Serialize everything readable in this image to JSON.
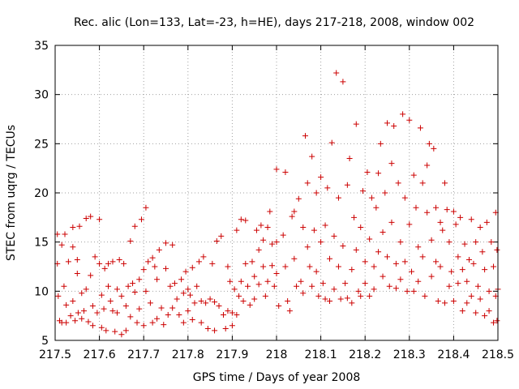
{
  "chart_data": {
    "type": "scatter",
    "title": "Rec. alic (Lon=133, Lat=-23, h=HE), days 217-218, 2008, window 002",
    "xlabel": "GPS time / Days of year 2008",
    "ylabel": "STEC from uqrg / TECUs",
    "xlim": [
      217.5,
      218.5
    ],
    "ylim": [
      5,
      35
    ],
    "xticks": [
      {
        "value": 217.5,
        "label": "217.5"
      },
      {
        "value": 217.6,
        "label": "217.6"
      },
      {
        "value": 217.7,
        "label": "217.7"
      },
      {
        "value": 217.8,
        "label": "217.8"
      },
      {
        "value": 217.9,
        "label": "217.9"
      },
      {
        "value": 218.0,
        "label": "218"
      },
      {
        "value": 218.1,
        "label": "218.1"
      },
      {
        "value": 218.2,
        "label": "218.2"
      },
      {
        "value": 218.3,
        "label": "218.3"
      },
      {
        "value": 218.4,
        "label": "218.4"
      },
      {
        "value": 218.5,
        "label": "218.5"
      }
    ],
    "yticks": [
      {
        "value": 5,
        "label": "5"
      },
      {
        "value": 10,
        "label": "10"
      },
      {
        "value": 15,
        "label": "15"
      },
      {
        "value": 20,
        "label": "20"
      },
      {
        "value": 25,
        "label": "25"
      },
      {
        "value": 30,
        "label": "30"
      },
      {
        "value": 35,
        "label": "35"
      }
    ],
    "grid": true,
    "marker": "+",
    "color": "#cc0000",
    "series": [
      {
        "name": "STEC",
        "points": [
          [
            217.505,
            15.8
          ],
          [
            217.505,
            12.8
          ],
          [
            217.507,
            9.5
          ],
          [
            217.51,
            7.0
          ],
          [
            217.515,
            14.7
          ],
          [
            217.515,
            6.8
          ],
          [
            217.52,
            10.5
          ],
          [
            217.522,
            15.8
          ],
          [
            217.525,
            8.6
          ],
          [
            217.525,
            6.8
          ],
          [
            217.53,
            13.0
          ],
          [
            217.535,
            7.5
          ],
          [
            217.54,
            16.5
          ],
          [
            217.54,
            9.0
          ],
          [
            217.54,
            14.5
          ],
          [
            217.545,
            7.0
          ],
          [
            217.55,
            13.2
          ],
          [
            217.55,
            11.8
          ],
          [
            217.552,
            7.8
          ],
          [
            217.555,
            16.6
          ],
          [
            217.56,
            9.8
          ],
          [
            217.56,
            7.2
          ],
          [
            217.565,
            8.0
          ],
          [
            217.57,
            17.4
          ],
          [
            217.57,
            10.2
          ],
          [
            217.575,
            6.9
          ],
          [
            217.58,
            17.6
          ],
          [
            217.58,
            11.6
          ],
          [
            217.585,
            8.5
          ],
          [
            217.585,
            6.5
          ],
          [
            217.59,
            13.5
          ],
          [
            217.595,
            7.8
          ],
          [
            217.6,
            17.3
          ],
          [
            217.6,
            12.8
          ],
          [
            217.605,
            9.6
          ],
          [
            217.605,
            6.3
          ],
          [
            217.61,
            8.2
          ],
          [
            217.612,
            12.3
          ],
          [
            217.615,
            6.0
          ],
          [
            217.62,
            12.8
          ],
          [
            217.62,
            10.5
          ],
          [
            217.625,
            9.0
          ],
          [
            217.63,
            13.0
          ],
          [
            217.63,
            8.0
          ],
          [
            217.635,
            5.9
          ],
          [
            217.64,
            10.2
          ],
          [
            217.64,
            7.8
          ],
          [
            217.645,
            13.2
          ],
          [
            217.65,
            9.5
          ],
          [
            217.65,
            5.6
          ],
          [
            217.655,
            12.8
          ],
          [
            217.66,
            8.5
          ],
          [
            217.66,
            6.0
          ],
          [
            217.665,
            10.5
          ],
          [
            217.67,
            15.1
          ],
          [
            217.67,
            7.4
          ],
          [
            217.675,
            10.8
          ],
          [
            217.68,
            16.6
          ],
          [
            217.68,
            9.9
          ],
          [
            217.685,
            6.8
          ],
          [
            217.69,
            11.2
          ],
          [
            217.69,
            8.2
          ],
          [
            217.695,
            17.3
          ],
          [
            217.7,
            12.2
          ],
          [
            217.7,
            6.5
          ],
          [
            217.705,
            18.5
          ],
          [
            217.705,
            10.0
          ],
          [
            217.71,
            13.0
          ],
          [
            217.715,
            8.8
          ],
          [
            217.72,
            13.4
          ],
          [
            217.72,
            6.8
          ],
          [
            217.725,
            12.5
          ],
          [
            217.73,
            7.2
          ],
          [
            217.73,
            11.2
          ],
          [
            217.735,
            14.2
          ],
          [
            217.74,
            8.3
          ],
          [
            217.745,
            6.6
          ],
          [
            217.75,
            14.9
          ],
          [
            217.75,
            12.3
          ],
          [
            217.755,
            7.6
          ],
          [
            217.76,
            10.5
          ],
          [
            217.765,
            14.7
          ],
          [
            217.765,
            8.3
          ],
          [
            217.77,
            10.8
          ],
          [
            217.775,
            9.2
          ],
          [
            217.78,
            7.6
          ],
          [
            217.785,
            11.2
          ],
          [
            217.79,
            9.8
          ],
          [
            217.79,
            6.8
          ],
          [
            217.795,
            12.0
          ],
          [
            217.8,
            10.2
          ],
          [
            217.8,
            8.0
          ],
          [
            217.805,
            9.6
          ],
          [
            217.81,
            12.4
          ],
          [
            217.81,
            7.1
          ],
          [
            217.815,
            8.8
          ],
          [
            217.82,
            10.5
          ],
          [
            217.825,
            13.0
          ],
          [
            217.83,
            9.0
          ],
          [
            217.83,
            6.8
          ],
          [
            217.835,
            13.5
          ],
          [
            217.84,
            8.8
          ],
          [
            217.845,
            6.2
          ],
          [
            217.85,
            9.2
          ],
          [
            217.855,
            12.8
          ],
          [
            217.86,
            8.9
          ],
          [
            217.86,
            6.0
          ],
          [
            217.865,
            15.1
          ],
          [
            217.87,
            8.5
          ],
          [
            217.875,
            15.6
          ],
          [
            217.88,
            7.6
          ],
          [
            217.885,
            6.2
          ],
          [
            217.89,
            12.5
          ],
          [
            217.89,
            8.0
          ],
          [
            217.895,
            11.0
          ],
          [
            217.9,
            7.8
          ],
          [
            217.9,
            6.5
          ],
          [
            217.905,
            10.2
          ],
          [
            217.91,
            16.2
          ],
          [
            217.91,
            7.6
          ],
          [
            217.915,
            9.5
          ],
          [
            217.92,
            17.3
          ],
          [
            217.92,
            11.0
          ],
          [
            217.925,
            9.0
          ],
          [
            217.93,
            17.2
          ],
          [
            217.93,
            12.8
          ],
          [
            217.935,
            10.5
          ],
          [
            217.94,
            8.6
          ],
          [
            217.945,
            13.0
          ],
          [
            217.95,
            11.5
          ],
          [
            217.95,
            9.2
          ],
          [
            217.955,
            16.2
          ],
          [
            217.96,
            14.2
          ],
          [
            217.96,
            10.7
          ],
          [
            217.965,
            16.7
          ],
          [
            217.97,
            15.2
          ],
          [
            217.97,
            12.5
          ],
          [
            217.975,
            9.5
          ],
          [
            217.98,
            16.5
          ],
          [
            217.98,
            11.0
          ],
          [
            217.985,
            18.1
          ],
          [
            217.99,
            14.8
          ],
          [
            217.99,
            12.6
          ],
          [
            217.995,
            10.5
          ],
          [
            218.0,
            22.4
          ],
          [
            218.0,
            15.0
          ],
          [
            218.0,
            11.8
          ],
          [
            218.005,
            8.5
          ],
          [
            218.015,
            15.7
          ],
          [
            218.02,
            22.1
          ],
          [
            218.02,
            12.5
          ],
          [
            218.025,
            9.0
          ],
          [
            218.03,
            8.0
          ],
          [
            218.035,
            17.6
          ],
          [
            218.04,
            18.1
          ],
          [
            218.04,
            13.3
          ],
          [
            218.045,
            10.5
          ],
          [
            218.05,
            19.4
          ],
          [
            218.055,
            11.0
          ],
          [
            218.06,
            16.5
          ],
          [
            218.06,
            9.8
          ],
          [
            218.065,
            25.8
          ],
          [
            218.07,
            21.0
          ],
          [
            218.07,
            14.5
          ],
          [
            218.075,
            12.5
          ],
          [
            218.08,
            23.7
          ],
          [
            218.08,
            10.5
          ],
          [
            218.085,
            16.2
          ],
          [
            218.09,
            20.0
          ],
          [
            218.09,
            12.0
          ],
          [
            218.095,
            9.5
          ],
          [
            218.1,
            21.6
          ],
          [
            218.1,
            15.0
          ],
          [
            218.105,
            10.8
          ],
          [
            218.11,
            16.7
          ],
          [
            218.11,
            9.2
          ],
          [
            218.115,
            20.5
          ],
          [
            218.12,
            13.3
          ],
          [
            218.12,
            9.0
          ],
          [
            218.125,
            25.1
          ],
          [
            218.13,
            15.6
          ],
          [
            218.13,
            10.2
          ],
          [
            218.135,
            32.2
          ],
          [
            218.14,
            19.5
          ],
          [
            218.14,
            12.5
          ],
          [
            218.145,
            9.2
          ],
          [
            218.15,
            31.3
          ],
          [
            218.15,
            14.6
          ],
          [
            218.155,
            10.8
          ],
          [
            218.16,
            20.8
          ],
          [
            218.16,
            9.3
          ],
          [
            218.165,
            23.5
          ],
          [
            218.17,
            12.2
          ],
          [
            218.17,
            8.8
          ],
          [
            218.175,
            17.5
          ],
          [
            218.18,
            27.0
          ],
          [
            218.18,
            14.2
          ],
          [
            218.185,
            10.0
          ],
          [
            218.19,
            16.5
          ],
          [
            218.19,
            9.5
          ],
          [
            218.195,
            20.2
          ],
          [
            218.2,
            13.0
          ],
          [
            218.2,
            10.8
          ],
          [
            218.205,
            22.1
          ],
          [
            218.21,
            15.3
          ],
          [
            218.21,
            9.5
          ],
          [
            218.215,
            19.5
          ],
          [
            218.22,
            12.5
          ],
          [
            218.22,
            10.2
          ],
          [
            218.225,
            18.5
          ],
          [
            218.23,
            22.0
          ],
          [
            218.23,
            14.0
          ],
          [
            218.235,
            25.0
          ],
          [
            218.24,
            16.0
          ],
          [
            218.24,
            11.5
          ],
          [
            218.245,
            20.0
          ],
          [
            218.25,
            27.1
          ],
          [
            218.25,
            13.5
          ],
          [
            218.255,
            10.5
          ],
          [
            218.26,
            23.0
          ],
          [
            218.26,
            17.0
          ],
          [
            218.265,
            26.8
          ],
          [
            218.27,
            12.8
          ],
          [
            218.27,
            10.3
          ],
          [
            218.275,
            21.0
          ],
          [
            218.28,
            15.0
          ],
          [
            218.28,
            11.2
          ],
          [
            218.285,
            28.0
          ],
          [
            218.29,
            19.5
          ],
          [
            218.29,
            13.0
          ],
          [
            218.295,
            10.0
          ],
          [
            218.3,
            27.4
          ],
          [
            218.3,
            16.8
          ],
          [
            218.305,
            12.0
          ],
          [
            218.31,
            21.8
          ],
          [
            218.31,
            10.0
          ],
          [
            218.315,
            18.5
          ],
          [
            218.32,
            14.5
          ],
          [
            218.32,
            11.0
          ],
          [
            218.325,
            26.6
          ],
          [
            218.33,
            21.0
          ],
          [
            218.33,
            13.5
          ],
          [
            218.335,
            9.5
          ],
          [
            218.34,
            18.0
          ],
          [
            218.34,
            22.8
          ],
          [
            218.345,
            25.0
          ],
          [
            218.35,
            15.2
          ],
          [
            218.35,
            11.5
          ],
          [
            218.355,
            24.5
          ],
          [
            218.36,
            18.5
          ],
          [
            218.36,
            13.0
          ],
          [
            218.365,
            9.0
          ],
          [
            218.37,
            17.0
          ],
          [
            218.37,
            12.5
          ],
          [
            218.375,
            16.2
          ],
          [
            218.38,
            21.0
          ],
          [
            218.38,
            8.8
          ],
          [
            218.385,
            18.3
          ],
          [
            218.39,
            15.0
          ],
          [
            218.39,
            10.5
          ],
          [
            218.395,
            12.0
          ],
          [
            218.4,
            18.1
          ],
          [
            218.4,
            9.0
          ],
          [
            218.405,
            16.8
          ],
          [
            218.41,
            13.5
          ],
          [
            218.41,
            10.8
          ],
          [
            218.415,
            17.5
          ],
          [
            218.42,
            12.2
          ],
          [
            218.42,
            8.0
          ],
          [
            218.425,
            14.8
          ],
          [
            218.43,
            11.0
          ],
          [
            218.43,
            8.8
          ],
          [
            218.435,
            13.2
          ],
          [
            218.44,
            17.3
          ],
          [
            218.44,
            9.5
          ],
          [
            218.445,
            12.8
          ],
          [
            218.45,
            15.0
          ],
          [
            218.45,
            7.8
          ],
          [
            218.455,
            10.5
          ],
          [
            218.46,
            16.5
          ],
          [
            218.46,
            9.2
          ],
          [
            218.465,
            14.0
          ],
          [
            218.47,
            12.2
          ],
          [
            218.47,
            7.5
          ],
          [
            218.475,
            17.0
          ],
          [
            218.48,
            10.0
          ],
          [
            218.48,
            8.0
          ],
          [
            218.485,
            15.0
          ],
          [
            218.49,
            12.5
          ],
          [
            218.49,
            6.8
          ],
          [
            218.495,
            18.0
          ],
          [
            218.495,
            9.5
          ],
          [
            218.498,
            14.2
          ],
          [
            218.498,
            7.0
          ],
          [
            218.5,
            10.2
          ]
        ]
      }
    ]
  }
}
